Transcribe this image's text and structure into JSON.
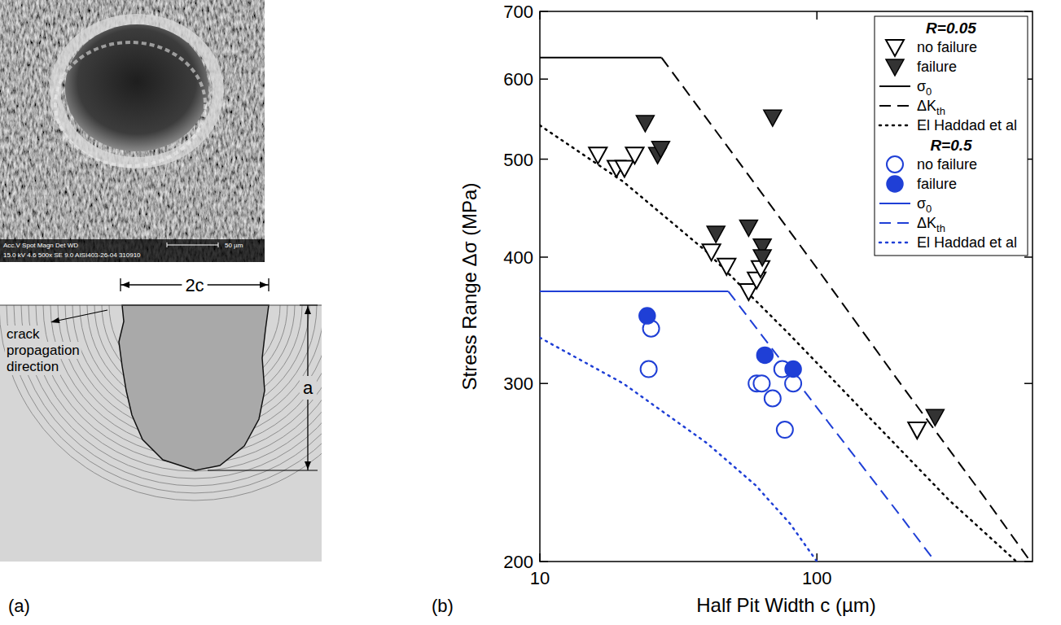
{
  "panel_labels": [
    "(a)",
    "(b)"
  ],
  "sem_image": {
    "header": "Acc.V Spot Magn Det WD",
    "values": "15.0 kV 4.6 500x SE 9.0 AISI403-26-04 310910",
    "scale_bar": "50 µm"
  },
  "schematic": {
    "width_label": "2c",
    "depth_label": "a",
    "arrow_label": "crack propagation direction"
  },
  "chart_data": {
    "type": "scatter",
    "log": true,
    "grid": false,
    "legend": "top-right",
    "xlabel": "Half Pit Width c (µm)",
    "ylabel": "Stress Range Δσ (MPa)",
    "xlim": [
      10,
      600
    ],
    "ylim": [
      200,
      700
    ],
    "xticks": [
      10,
      100
    ],
    "yticks": [
      200,
      300,
      400,
      500,
      600,
      700
    ],
    "series": [
      {
        "name": "no failure",
        "group": "R=0.05",
        "type": "scatter",
        "marker": "triangle-down-open",
        "color": "#000000",
        "x": [
          16.2,
          18.9,
          20.2,
          22.0,
          41.6,
          47.2,
          56.7,
          60.6,
          62.6,
          230
        ],
        "values": [
          505,
          490,
          490,
          505,
          405,
          392,
          370,
          380,
          390,
          270
        ]
      },
      {
        "name": "failure",
        "group": "R=0.05",
        "type": "scatter",
        "marker": "triangle-down",
        "color": "#000000",
        "x": [
          24.0,
          26.6,
          27.3,
          43.2,
          56.7,
          63.5,
          63.5,
          69.2,
          267
        ],
        "values": [
          543,
          505,
          512,
          422,
          428,
          410,
          400,
          550,
          278
        ]
      },
      {
        "name": "σ",
        "subscript": "0",
        "group": "R=0.05",
        "type": "line",
        "line_style": "solid",
        "color": "#000000",
        "x": [
          10,
          27.5
        ],
        "values": [
          630,
          630
        ]
      },
      {
        "name": "ΔK",
        "subscript": "th",
        "group": "R=0.05",
        "type": "line",
        "line_style": "dashed",
        "color": "#000000",
        "x": [
          27.5,
          50,
          100,
          200,
          400,
          590
        ],
        "values": [
          630,
          505,
          390,
          300,
          232,
          200
        ]
      },
      {
        "name": "El Haddad et al",
        "group": "R=0.05",
        "type": "line",
        "line_style": "dotted",
        "color": "#000000",
        "x": [
          10,
          20,
          40,
          80,
          150,
          300,
          525
        ],
        "values": [
          540,
          475,
          405,
          335,
          280,
          230,
          200
        ]
      },
      {
        "name": "no failure",
        "group": "R=0.5",
        "type": "scatter",
        "marker": "circle-open",
        "color": "#1f3fd6",
        "x": [
          25.2,
          24.7,
          60.6,
          63.2,
          69.2,
          75.0,
          76.6,
          82.1
        ],
        "values": [
          340,
          310,
          300,
          300,
          290,
          310,
          270,
          300
        ]
      },
      {
        "name": "failure",
        "group": "R=0.5",
        "type": "scatter",
        "marker": "circle",
        "color": "#1f3fd6",
        "x": [
          24.4,
          64.9,
          82.1
        ],
        "values": [
          350,
          320,
          310
        ]
      },
      {
        "name": "σ",
        "subscript": "0",
        "group": "R=0.5",
        "type": "line",
        "line_style": "solid",
        "color": "#1f3fd6",
        "x": [
          10,
          47.9
        ],
        "values": [
          370,
          370
        ]
      },
      {
        "name": "ΔK",
        "subscript": "th",
        "group": "R=0.5",
        "type": "line",
        "line_style": "dashed",
        "color": "#1f3fd6",
        "x": [
          47.9,
          100,
          150,
          200,
          267
        ],
        "values": [
          370,
          284,
          246,
          222,
          200
        ]
      },
      {
        "name": "El Haddad et al",
        "group": "R=0.5",
        "type": "line",
        "line_style": "dotted",
        "color": "#1f3fd6",
        "x": [
          10,
          20,
          40,
          60,
          80,
          100
        ],
        "values": [
          333,
          300,
          262,
          238,
          218,
          200
        ]
      }
    ]
  }
}
